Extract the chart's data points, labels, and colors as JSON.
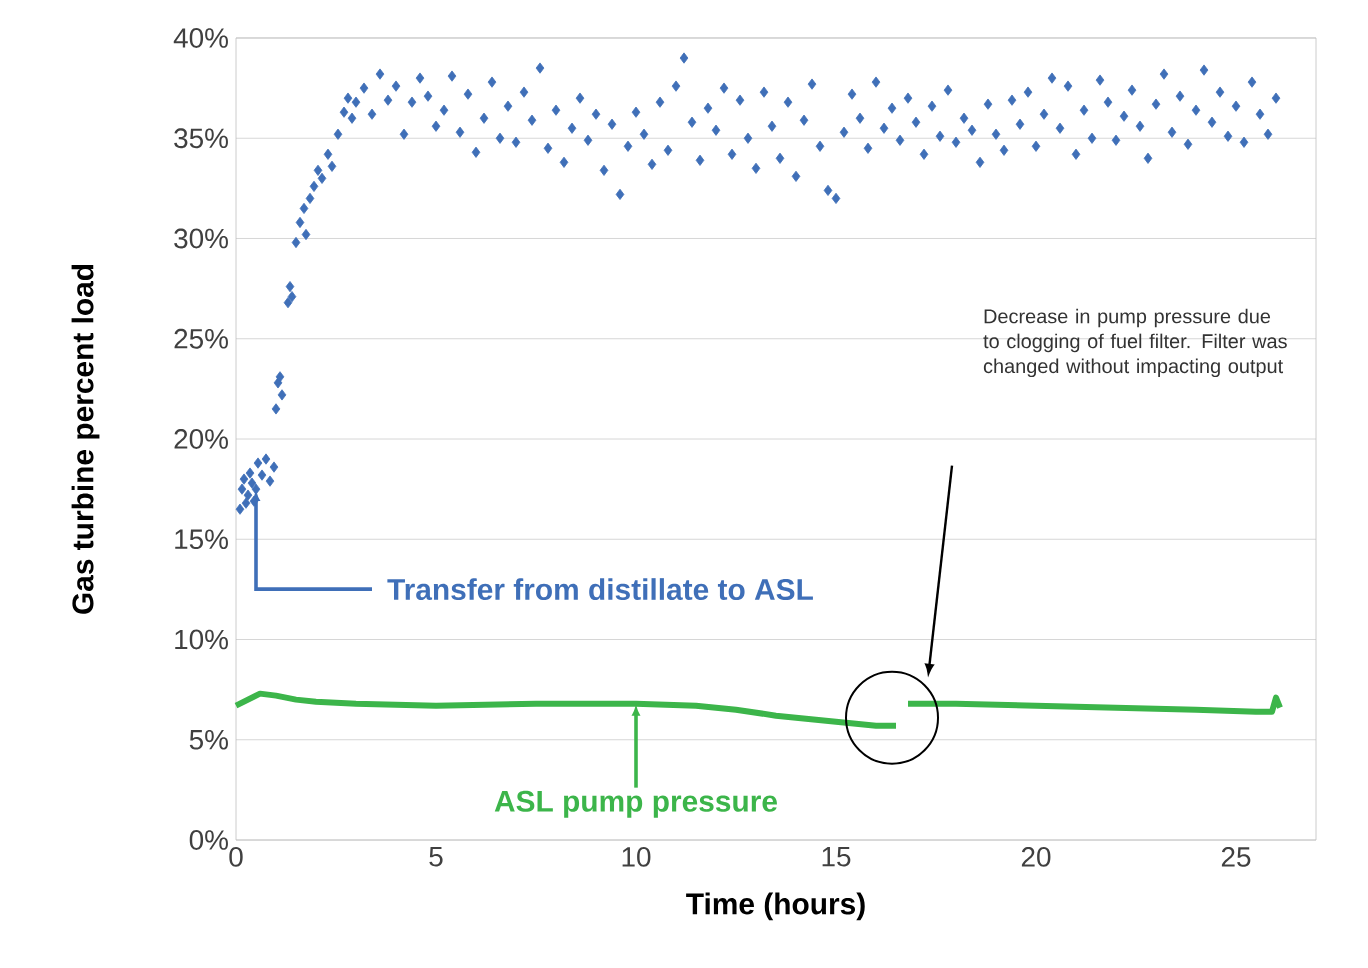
{
  "chart_data": {
    "type": "scatter",
    "xlabel": "Time (hours)",
    "ylabel": "Gas turbine percent load",
    "xlim": [
      0,
      27
    ],
    "ylim": [
      0,
      40
    ],
    "xticks": [
      0,
      5,
      10,
      15,
      20,
      25
    ],
    "yticks": [
      {
        "value": 0,
        "label": "0%"
      },
      {
        "value": 5,
        "label": "5%"
      },
      {
        "value": 10,
        "label": "10%"
      },
      {
        "value": 15,
        "label": "15%"
      },
      {
        "value": 20,
        "label": "20%"
      },
      {
        "value": 25,
        "label": "25%"
      },
      {
        "value": 30,
        "label": "30%"
      },
      {
        "value": 35,
        "label": "35%"
      },
      {
        "value": 40,
        "label": "40%"
      }
    ],
    "grid": "y",
    "legend": "bottom",
    "series": [
      {
        "marker": "diamond",
        "color": "#3f6fb8",
        "x": [
          0.1,
          0.15,
          0.2,
          0.25,
          0.3,
          0.35,
          0.4,
          0.45,
          0.5,
          0.55,
          0.65,
          0.75,
          0.85,
          0.95,
          1.0,
          1.05,
          1.1,
          1.15,
          1.3,
          1.35,
          1.4,
          1.5,
          1.6,
          1.7,
          1.75,
          1.85,
          1.95,
          2.05,
          2.15,
          2.3,
          2.4,
          2.55,
          2.7,
          2.8,
          2.9,
          3.0,
          3.2,
          3.4,
          3.6,
          3.8,
          4.0,
          4.2,
          4.4,
          4.6,
          4.8,
          5.0,
          5.2,
          5.4,
          5.6,
          5.8,
          6.0,
          6.2,
          6.4,
          6.6,
          6.8,
          7.0,
          7.2,
          7.4,
          7.6,
          7.8,
          8.0,
          8.2,
          8.4,
          8.6,
          8.8,
          9.0,
          9.2,
          9.4,
          9.6,
          9.8,
          10.0,
          10.2,
          10.4,
          10.6,
          10.8,
          11.0,
          11.2,
          11.4,
          11.6,
          11.8,
          12.0,
          12.2,
          12.4,
          12.6,
          12.8,
          13.0,
          13.2,
          13.4,
          13.6,
          13.8,
          14.0,
          14.2,
          14.4,
          14.6,
          14.8,
          15.0,
          15.2,
          15.4,
          15.6,
          15.8,
          16.0,
          16.2,
          16.4,
          16.6,
          16.8,
          17.0,
          17.2,
          17.4,
          17.6,
          17.8,
          18.0,
          18.2,
          18.4,
          18.6,
          18.8,
          19.0,
          19.2,
          19.4,
          19.6,
          19.8,
          20.0,
          20.2,
          20.4,
          20.6,
          20.8,
          21.0,
          21.2,
          21.4,
          21.6,
          21.8,
          22.0,
          22.2,
          22.4,
          22.6,
          22.8,
          23.0,
          23.2,
          23.4,
          23.6,
          23.8,
          24.0,
          24.2,
          24.4,
          24.6,
          24.8,
          25.0,
          25.2,
          25.4,
          25.6,
          25.8,
          26.0
        ],
        "values": [
          16.5,
          17.5,
          18,
          16.8,
          17.2,
          18.3,
          17.8,
          16.9,
          17.5,
          18.8,
          18.2,
          19.0,
          17.9,
          18.6,
          21.5,
          22.8,
          23.1,
          22.2,
          26.8,
          27.6,
          27.1,
          29.8,
          30.8,
          31.5,
          30.2,
          32.0,
          32.6,
          33.4,
          33.0,
          34.2,
          33.6,
          35.2,
          36.3,
          37.0,
          36.0,
          36.8,
          37.5,
          36.2,
          38.2,
          36.9,
          37.6,
          35.2,
          36.8,
          38.0,
          37.1,
          35.6,
          36.4,
          38.1,
          35.3,
          37.2,
          34.3,
          36.0,
          37.8,
          35.0,
          36.6,
          34.8,
          37.3,
          35.9,
          38.5,
          34.5,
          36.4,
          33.8,
          35.5,
          37.0,
          34.9,
          36.2,
          33.4,
          35.7,
          32.2,
          34.6,
          36.3,
          35.2,
          33.7,
          36.8,
          34.4,
          37.6,
          39.0,
          35.8,
          33.9,
          36.5,
          35.4,
          37.5,
          34.2,
          36.9,
          35.0,
          33.5,
          37.3,
          35.6,
          34.0,
          36.8,
          33.1,
          35.9,
          37.7,
          34.6,
          32.4,
          32.0,
          35.3,
          37.2,
          36.0,
          34.5,
          37.8,
          35.5,
          36.5,
          34.9,
          37.0,
          35.8,
          34.2,
          36.6,
          35.1,
          37.4,
          34.8,
          36.0,
          35.4,
          33.8,
          36.7,
          35.2,
          34.4,
          36.9,
          35.7,
          37.3,
          34.6,
          36.2,
          38.0,
          35.5,
          37.6,
          34.2,
          36.4,
          35.0,
          37.9,
          36.8,
          34.9,
          36.1,
          37.4,
          35.6,
          34.0,
          36.7,
          38.2,
          35.3,
          37.1,
          34.7,
          36.4,
          38.4,
          35.8,
          37.3,
          35.1,
          36.6,
          34.8,
          37.8,
          36.2,
          35.2,
          37.0
        ]
      },
      {
        "type": "line",
        "name": "ASL pump pressure",
        "color": "#3cb54a",
        "line_style": "solid",
        "marker": "none",
        "x": [
          0,
          0.3,
          0.6,
          1.0,
          1.5,
          2.0,
          3.0,
          5.0,
          7.5,
          10.0,
          11.5,
          12.5,
          13.5,
          14.5,
          15.5,
          16.0,
          16.5,
          16.6,
          16.8,
          18.0,
          20.0,
          22.0,
          24.0,
          25.5,
          25.9,
          26.0,
          26.1
        ],
        "values": [
          6.7,
          7.0,
          7.3,
          7.2,
          7.0,
          6.9,
          6.8,
          6.7,
          6.8,
          6.8,
          6.7,
          6.5,
          6.2,
          6.0,
          5.8,
          5.7,
          5.7,
          null,
          6.8,
          6.8,
          6.7,
          6.6,
          6.5,
          6.4,
          6.4,
          7.1,
          6.6
        ]
      }
    ],
    "annotations": [
      {
        "text": "Transfer from distillate to ASL",
        "x": 0.5,
        "y": 17.5
      },
      "Decrease in pump pressure due to clogging of fuel filter.  Filter was changed without impacting output"
    ]
  }
}
